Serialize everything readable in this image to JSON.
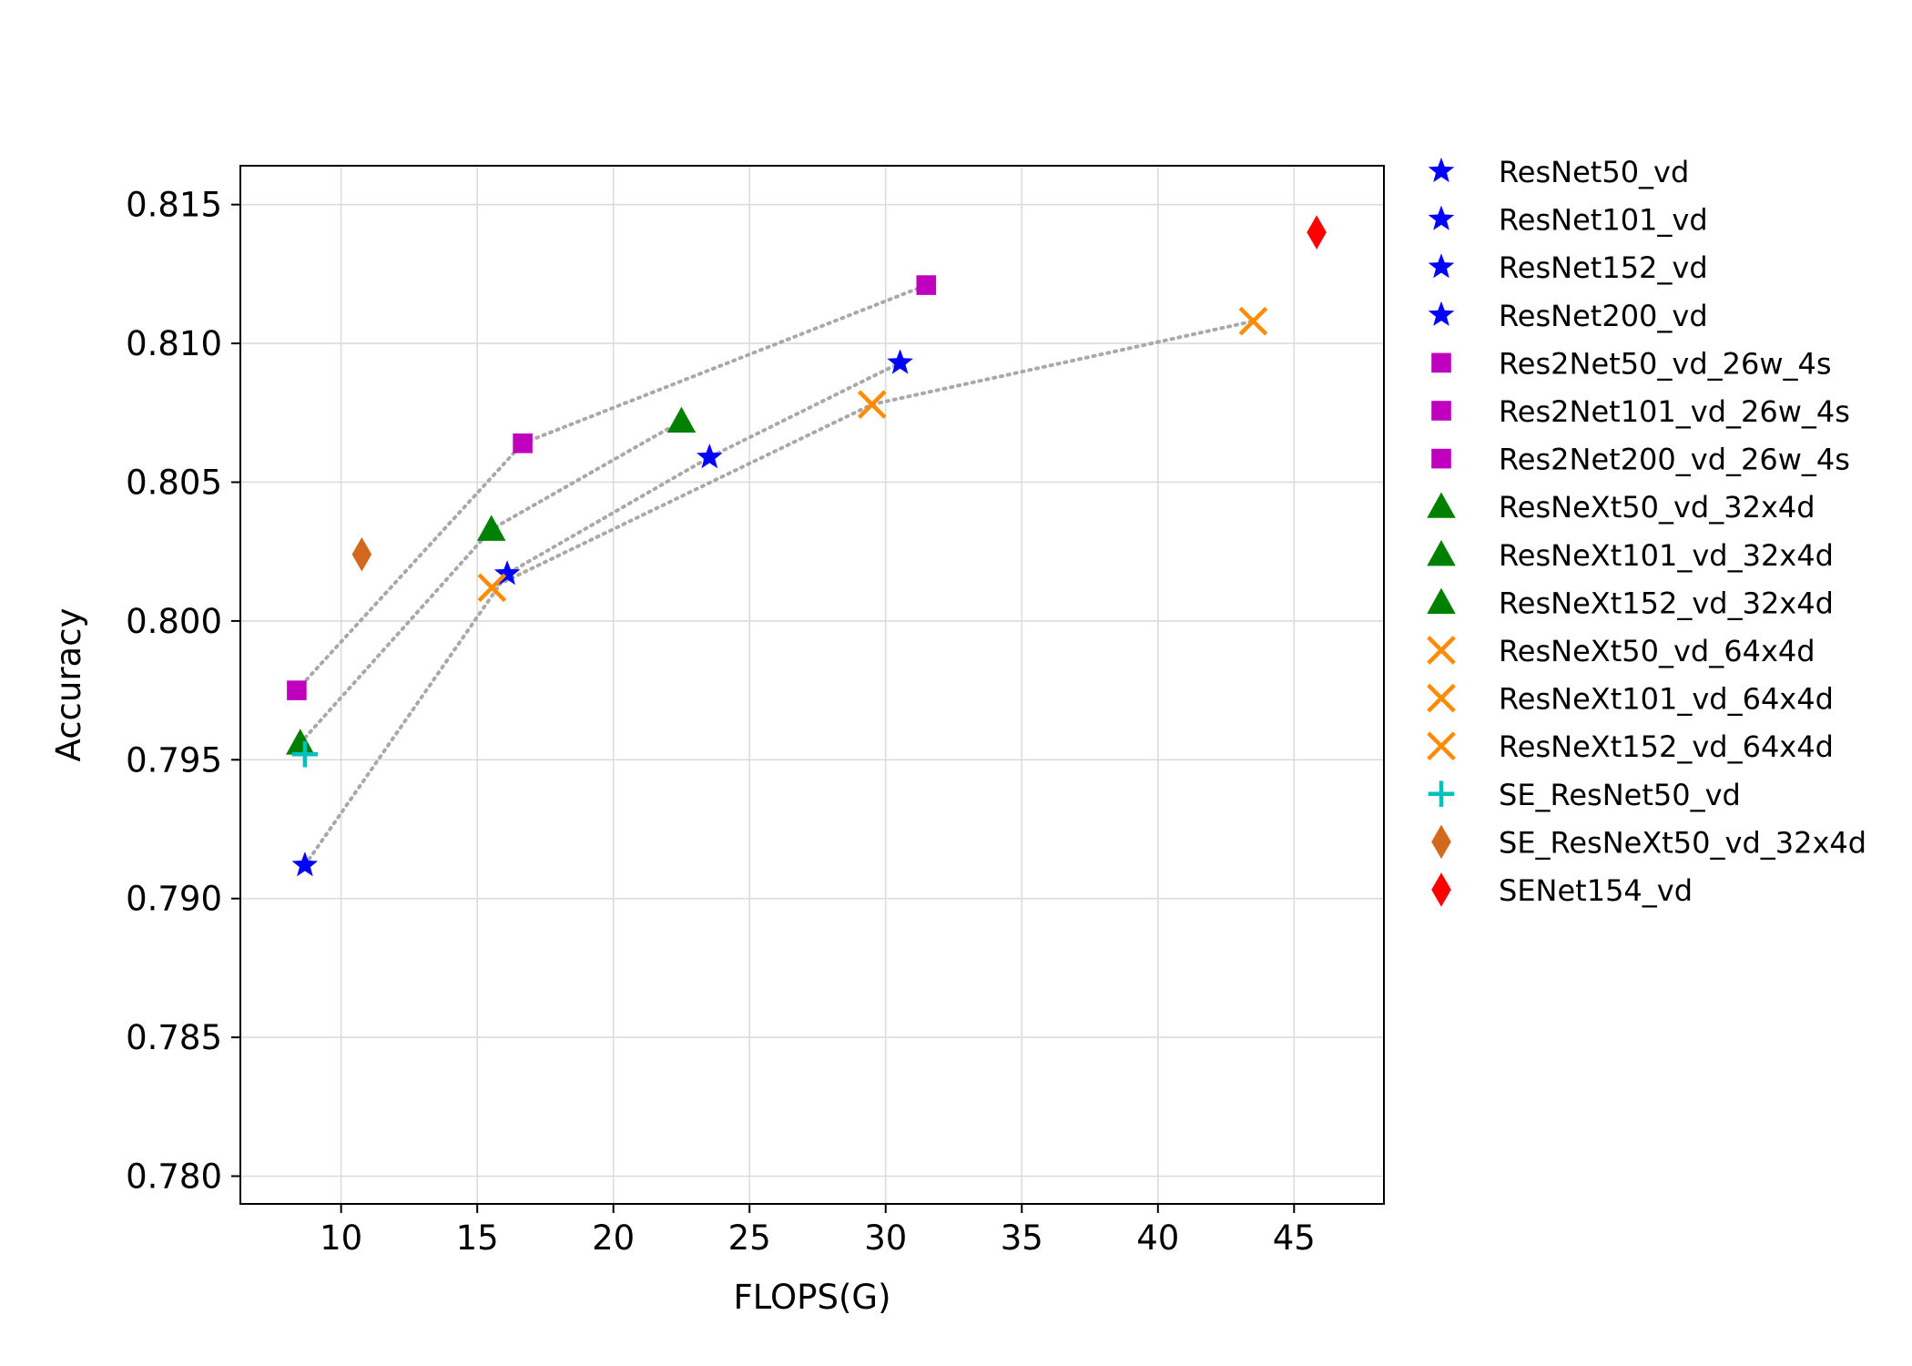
{
  "chart_data": {
    "type": "scatter",
    "title": "",
    "xlabel": "FLOPS(G)",
    "ylabel": "Accuracy",
    "xlim": [
      6.3,
      48.3
    ],
    "ylim": [
      0.779,
      0.8164
    ],
    "xticks": [
      10,
      15,
      20,
      25,
      30,
      35,
      40,
      45
    ],
    "yticks": [
      0.78,
      0.785,
      0.79,
      0.795,
      0.8,
      0.805,
      0.81,
      0.815
    ],
    "xtick_labels": [
      "10",
      "15",
      "20",
      "25",
      "30",
      "35",
      "40",
      "45"
    ],
    "ytick_labels": [
      "0.780",
      "0.785",
      "0.790",
      "0.795",
      "0.800",
      "0.805",
      "0.810",
      "0.815"
    ],
    "grid": true,
    "legend_position": "outside-right",
    "series": [
      {
        "name": "ResNet50_vd",
        "marker": "star",
        "color": "#0000ff",
        "x": 8.67,
        "y": 0.7912
      },
      {
        "name": "ResNet101_vd",
        "marker": "star",
        "color": "#0000ff",
        "x": 16.1,
        "y": 0.8017
      },
      {
        "name": "ResNet152_vd",
        "marker": "star",
        "color": "#0000ff",
        "x": 23.53,
        "y": 0.8059
      },
      {
        "name": "ResNet200_vd",
        "marker": "star",
        "color": "#0000ff",
        "x": 30.53,
        "y": 0.8093
      },
      {
        "name": "Res2Net50_vd_26w_4s",
        "marker": "square",
        "color": "#bf00bf",
        "x": 8.37,
        "y": 0.7975
      },
      {
        "name": "Res2Net101_vd_26w_4s",
        "marker": "square",
        "color": "#bf00bf",
        "x": 16.67,
        "y": 0.8064
      },
      {
        "name": "Res2Net200_vd_26w_4s",
        "marker": "square",
        "color": "#bf00bf",
        "x": 31.49,
        "y": 0.8121
      },
      {
        "name": "ResNeXt50_vd_32x4d",
        "marker": "triangle",
        "color": "#008000",
        "x": 8.5,
        "y": 0.7956
      },
      {
        "name": "ResNeXt101_vd_32x4d",
        "marker": "triangle",
        "color": "#008000",
        "x": 15.52,
        "y": 0.8033
      },
      {
        "name": "ResNeXt152_vd_32x4d",
        "marker": "triangle",
        "color": "#008000",
        "x": 22.5,
        "y": 0.8072
      },
      {
        "name": "ResNeXt50_vd_64x4d",
        "marker": "x",
        "color": "#ff8c00",
        "x": 15.54,
        "y": 0.8012
      },
      {
        "name": "ResNeXt101_vd_64x4d",
        "marker": "x",
        "color": "#ff8c00",
        "x": 29.5,
        "y": 0.8078
      },
      {
        "name": "ResNeXt152_vd_64x4d",
        "marker": "x",
        "color": "#ff8c00",
        "x": 43.5,
        "y": 0.8108
      },
      {
        "name": "SE_ResNet50_vd",
        "marker": "plus",
        "color": "#00bfbf",
        "x": 8.67,
        "y": 0.7952
      },
      {
        "name": "SE_ResNeXt50_vd_32x4d",
        "marker": "diamond",
        "color": "#d2691e",
        "x": 10.76,
        "y": 0.8024
      },
      {
        "name": "SENet154_vd",
        "marker": "diamond",
        "color": "#ff0000",
        "x": 45.83,
        "y": 0.814
      }
    ],
    "connecting_lines": {
      "style": "dotted",
      "color": "#a9a9a9",
      "groups": [
        [
          "ResNet50_vd",
          "ResNet101_vd",
          "ResNet152_vd",
          "ResNet200_vd"
        ],
        [
          "Res2Net50_vd_26w_4s",
          "Res2Net101_vd_26w_4s",
          "Res2Net200_vd_26w_4s"
        ],
        [
          "ResNeXt50_vd_32x4d",
          "ResNeXt101_vd_32x4d",
          "ResNeXt152_vd_32x4d"
        ],
        [
          "ResNeXt50_vd_64x4d",
          "ResNeXt101_vd_64x4d",
          "ResNeXt152_vd_64x4d"
        ]
      ]
    }
  }
}
